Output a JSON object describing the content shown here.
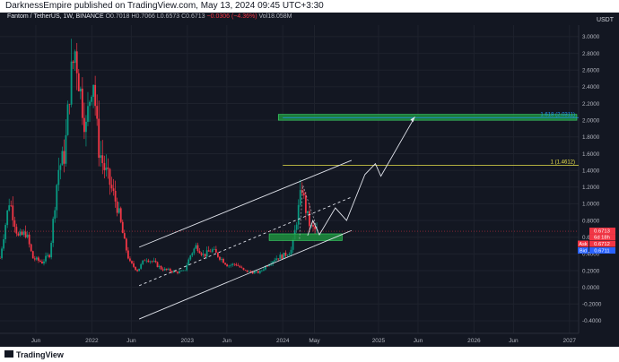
{
  "header": {
    "publish_text": "DarknessEmpire published on TradingView.com, May 13, 2024 09:45 UTC+3:30"
  },
  "legend": {
    "symbol": "Fantom / TetherUS, 1W, BINANCE",
    "open": "O0.7018",
    "high": "H0.7066",
    "low": "L0.6573",
    "close": "C0.6713",
    "change": "−0.0306 (−4.36%)",
    "volume": "Vol18.058M"
  },
  "currency": "USDT",
  "footer": {
    "brand": "TradingView"
  },
  "chart_data": {
    "type": "candlestick",
    "title": "Fantom / TetherUS, 1W, BINANCE",
    "ylim": [
      -0.55,
      3.2
    ],
    "y_ticks": [
      "3.0000",
      "2.8000",
      "2.6000",
      "2.4000",
      "2.2000",
      "2.0000",
      "1.8000",
      "1.6000",
      "1.4000",
      "1.2000",
      "1.0000",
      "0.8000",
      "0.6000",
      "0.4000",
      "0.2000",
      "0.0000",
      "-0.2000",
      "-0.4000"
    ],
    "y_tick_values": [
      3.0,
      2.8,
      2.6,
      2.4,
      2.2,
      2.0,
      1.8,
      1.6,
      1.4,
      1.2,
      1.0,
      0.8,
      0.6,
      0.4,
      0.2,
      0.0,
      -0.2,
      -0.4
    ],
    "x_ticks": [
      {
        "label": "Jun",
        "date": "2021-06-01"
      },
      {
        "label": "2022",
        "date": "2022-01-01"
      },
      {
        "label": "Jun",
        "date": "2022-06-01"
      },
      {
        "label": "2023",
        "date": "2023-01-01"
      },
      {
        "label": "Jun",
        "date": "2023-06-01"
      },
      {
        "label": "2024",
        "date": "2024-01-01"
      },
      {
        "label": "May",
        "date": "2024-05-01"
      },
      {
        "label": "2025",
        "date": "2025-01-01"
      },
      {
        "label": "Jun",
        "date": "2025-06-01"
      },
      {
        "label": "2026",
        "date": "2026-01-01"
      },
      {
        "label": "Jun",
        "date": "2026-06-01"
      },
      {
        "label": "2027",
        "date": "2027-01-01"
      }
    ],
    "x_range": [
      "2021-01-15",
      "2027-02-05"
    ],
    "price_path": [
      [
        "2021-01-15",
        0.35
      ],
      [
        "2021-02-20",
        1.05
      ],
      [
        "2021-03-25",
        0.6
      ],
      [
        "2021-04-25",
        0.65
      ],
      [
        "2021-05-20",
        0.35
      ],
      [
        "2021-06-25",
        0.3
      ],
      [
        "2021-07-25",
        0.4
      ],
      [
        "2021-08-25",
        1.4
      ],
      [
        "2021-09-20",
        1.6
      ],
      [
        "2021-10-10",
        2.45
      ],
      [
        "2021-10-30",
        2.85
      ],
      [
        "2021-11-20",
        2.3
      ],
      [
        "2021-12-10",
        1.9
      ],
      [
        "2022-01-05",
        2.6
      ],
      [
        "2022-01-25",
        1.7
      ],
      [
        "2022-02-15",
        1.45
      ],
      [
        "2022-03-10",
        1.25
      ],
      [
        "2022-04-10",
        0.95
      ],
      [
        "2022-05-05",
        0.55
      ],
      [
        "2022-05-25",
        0.3
      ],
      [
        "2022-06-25",
        0.2
      ],
      [
        "2022-07-25",
        0.35
      ],
      [
        "2022-08-25",
        0.3
      ],
      [
        "2022-09-25",
        0.22
      ],
      [
        "2022-10-25",
        0.2
      ],
      [
        "2022-11-20",
        0.18
      ],
      [
        "2022-12-20",
        0.19
      ],
      [
        "2023-01-15",
        0.4
      ],
      [
        "2023-02-05",
        0.5
      ],
      [
        "2023-03-05",
        0.38
      ],
      [
        "2023-04-05",
        0.45
      ],
      [
        "2023-05-05",
        0.36
      ],
      [
        "2023-06-05",
        0.26
      ],
      [
        "2023-07-05",
        0.28
      ],
      [
        "2023-08-05",
        0.2
      ],
      [
        "2023-09-05",
        0.18
      ],
      [
        "2023-10-05",
        0.18
      ],
      [
        "2023-11-05",
        0.28
      ],
      [
        "2023-12-05",
        0.35
      ],
      [
        "2024-01-05",
        0.38
      ],
      [
        "2024-02-05",
        0.45
      ],
      [
        "2024-03-05",
        1.02
      ],
      [
        "2024-03-15",
        1.2
      ],
      [
        "2024-03-25",
        0.98
      ],
      [
        "2024-04-15",
        0.72
      ],
      [
        "2024-05-13",
        0.6713
      ]
    ],
    "levels": [
      {
        "label": "1.618 (2.0311)",
        "value": 2.0311,
        "color": "#2196f3"
      },
      {
        "label": "1 (1.4612)",
        "value": 1.4612,
        "color": "#e8e04a"
      }
    ],
    "zones": [
      {
        "name": "target-zone",
        "from": 2.0,
        "to": 2.07,
        "color": "#1e8e3e"
      },
      {
        "name": "support-zone",
        "from": 0.56,
        "to": 0.64,
        "color": "#1e8e3e"
      }
    ],
    "price_labels": [
      {
        "tag": "",
        "value": "0.6713",
        "color": "#f23645"
      },
      {
        "tag": "",
        "value": "6d 18h",
        "color": "#f23645"
      },
      {
        "tag": "Ask",
        "value": "0.6712",
        "color": "#f23645"
      },
      {
        "tag": "Bid",
        "value": "0.6711",
        "color": "#2962ff"
      }
    ]
  }
}
